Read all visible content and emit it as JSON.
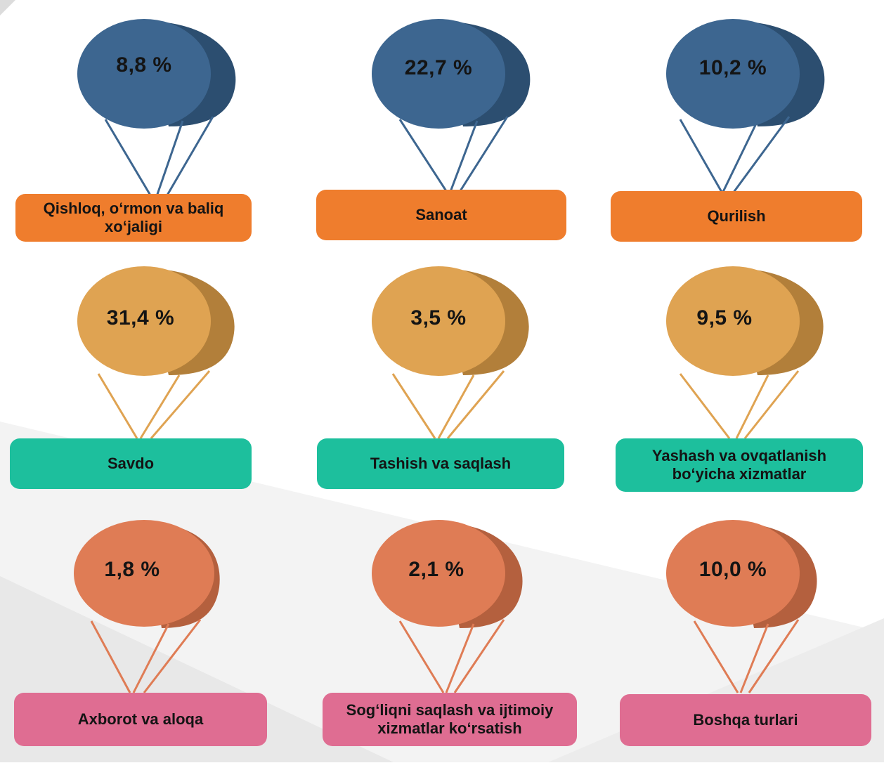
{
  "colors": {
    "blue": {
      "balloon": "#3d6690",
      "side": "#2c4e70",
      "rope": "#3d6690"
    },
    "gold": {
      "balloon": "#dfa352",
      "side": "#b27f3a",
      "rope": "#dfa352"
    },
    "coral": {
      "balloon": "#df7c55",
      "side": "#b4603e",
      "rope": "#df7c55"
    },
    "orange_label": "#ef7d2d",
    "teal_label": "#1dbf9d",
    "pink_label": "#df6d92"
  },
  "items": [
    {
      "value": "8,8 %",
      "label": "Qishloq, o‘rmon va baliq xo‘jaligi"
    },
    {
      "value": "22,7 %",
      "label": "Sanoat"
    },
    {
      "value": "10,2 %",
      "label": "Qurilish"
    },
    {
      "value": "31,4 %",
      "label": "Savdo"
    },
    {
      "value": "3,5 %",
      "label": "Tashish va saqlash"
    },
    {
      "value": "9,5 %",
      "label": "Yashash va ovqatlanish bo‘yicha xizmatlar"
    },
    {
      "value": "1,8 %",
      "label": "Axborot va aloqa"
    },
    {
      "value": "2,1 %",
      "label": "Sog‘liqni saqlash va ijtimoiy xizmatlar ko‘rsatish"
    },
    {
      "value": "10,0 %",
      "label": "Boshqa turlari"
    }
  ]
}
